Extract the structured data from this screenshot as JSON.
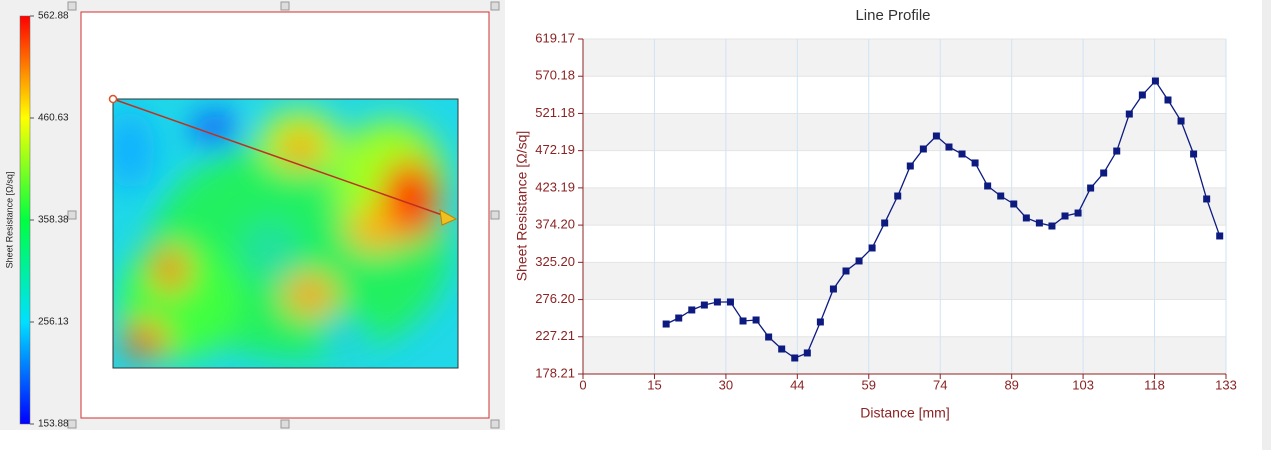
{
  "chart_data": [
    {
      "type": "colorbar",
      "label": "Sheet Resistance [Ω/sq]",
      "ylim": [
        153.88,
        562.88
      ],
      "yticks": [
        153.88,
        256.13,
        358.38,
        460.63,
        562.88
      ],
      "colors": [
        "#0000ff",
        "#00e0ff",
        "#00ff40",
        "#ffff00",
        "#ff0000"
      ]
    },
    {
      "type": "line",
      "title": "Line Profile",
      "xlabel": "Distance [mm]",
      "ylabel": "Sheet Resistance [Ω/sq]",
      "x": [
        17.2,
        19.8,
        22.5,
        25.1,
        27.8,
        30.5,
        33.1,
        35.8,
        38.4,
        41.1,
        43.8,
        46.4,
        49.1,
        51.8,
        54.4,
        57.1,
        59.8,
        62.4,
        65.1,
        67.7,
        70.4,
        73.1,
        75.7,
        78.4,
        81.1,
        83.7,
        86.4,
        89.1,
        91.7,
        94.4,
        97.0,
        99.7,
        102.4,
        105.0,
        107.7,
        110.4,
        113.0,
        115.7,
        118.4,
        121.0,
        123.7,
        126.3,
        129.0,
        131.7
      ],
      "series": [
        {
          "color": "#0d1b80",
          "values": [
            244.0,
            251.9,
            262.5,
            269.0,
            273.0,
            273.0,
            248.0,
            249.3,
            226.9,
            211.1,
            199.3,
            205.9,
            246.7,
            290.1,
            313.8,
            327.0,
            344.1,
            377.0,
            412.5,
            452.0,
            474.4,
            491.5,
            477.0,
            467.8,
            456.0,
            425.7,
            412.5,
            402.0,
            383.6,
            377.0,
            373.0,
            386.2,
            390.1,
            423.0,
            442.8,
            471.7,
            520.4,
            545.5,
            563.9,
            538.9,
            511.2,
            467.8,
            408.6,
            359.9
          ]
        }
      ],
      "xlim": [
        0,
        133
      ],
      "xticks": [
        0,
        {
          "value": 14.78,
          "label": "15"
        },
        {
          "value": 29.56,
          "label": "30"
        },
        {
          "value": 44.33,
          "label": "44"
        },
        {
          "value": 59.11,
          "label": "59"
        },
        {
          "value": 73.89,
          "label": "74"
        },
        {
          "value": 88.67,
          "label": "89"
        },
        {
          "value": 103.44,
          "label": "103"
        },
        {
          "value": 118.22,
          "label": "118"
        },
        133
      ],
      "ylim": [
        178.21,
        619.17
      ],
      "yticks": [
        178.21,
        227.21,
        {
          "value": 276.2,
          "label": "276.20"
        },
        {
          "value": 325.2,
          "label": "325.20"
        },
        {
          "value": 374.2,
          "label": "374.20"
        },
        423.19,
        472.19,
        521.18,
        570.18,
        619.17
      ],
      "grid": true,
      "band_color": "#f2f2f2",
      "grid_color": "#cfe3f5",
      "axis_color": "#8b2323"
    }
  ]
}
